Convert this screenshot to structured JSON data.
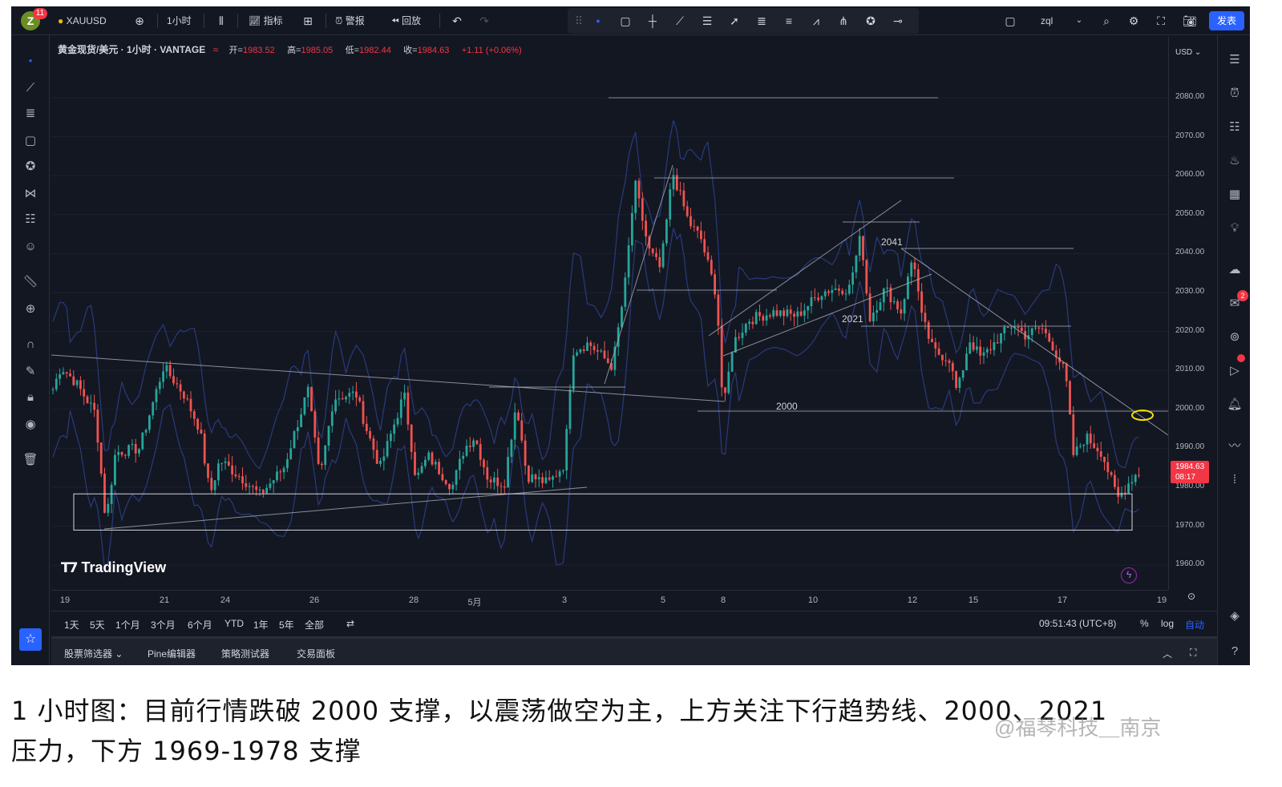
{
  "topbar": {
    "avatar_letter": "Z",
    "notif_count": "11",
    "symbol": "XAUUSD",
    "interval": "1小时",
    "indicators": "指标",
    "alert": "警报",
    "replay": "回放",
    "username": "zql",
    "publish": "发表"
  },
  "legend": {
    "title": "黄金现货/美元 · 1小时 · VANTAGE",
    "open_label": "开=",
    "open": "1983.52",
    "high_label": "高=",
    "high": "1985.05",
    "low_label": "低=",
    "low": "1982.44",
    "close_label": "收=",
    "close": "1984.63",
    "change": "+1.11 (+0.06%)"
  },
  "price_axis": {
    "currency": "USD",
    "current_price": "1984.63",
    "countdown": "08:17",
    "tick_labels": [
      "2080.00",
      "2070.00",
      "2060.00",
      "2050.00",
      "2040.00",
      "2030.00",
      "2020.00",
      "2010.00",
      "2000.00",
      "1990.00",
      "1980.00",
      "1970.00",
      "1960.00"
    ]
  },
  "time_axis": {
    "tick_labels": [
      "19",
      "21",
      "24",
      "26",
      "28",
      "5月",
      "3",
      "5",
      "8",
      "10",
      "12",
      "15",
      "17",
      "19"
    ]
  },
  "chart_annotations": {
    "level_2041": "2041",
    "level_2021": "2021",
    "level_2000": "2000"
  },
  "chart_data": {
    "type": "candlestick",
    "symbol": "XAUUSD",
    "interval": "1小时",
    "ylim": [
      1955,
      2090
    ],
    "x_ticks": [
      "19",
      "21",
      "24",
      "26",
      "28",
      "5月",
      "3",
      "5",
      "8",
      "10",
      "12",
      "15",
      "17",
      "19"
    ],
    "horizontal_levels": [
      2080,
      2060,
      2048,
      2041,
      2031,
      2021,
      2006,
      2000,
      1978,
      1969
    ],
    "support_zone": [
      1969,
      1978
    ],
    "last": {
      "open": 1983.52,
      "high": 1985.05,
      "low": 1982.44,
      "close": 1984.63,
      "change": 1.11,
      "change_pct": 0.06
    }
  },
  "range_bar": {
    "ranges": [
      "1天",
      "5天",
      "1个月",
      "3个月",
      "6个月",
      "YTD",
      "1年",
      "5年",
      "全部"
    ],
    "clock": "09:51:43 (UTC+8)",
    "percent": "%",
    "log": "log",
    "auto": "自动"
  },
  "bottom_tabs": [
    "股票筛选器",
    "Pine编辑器",
    "策略测试器",
    "交易面板"
  ],
  "brand": "TradingView",
  "caption": {
    "line1": "1 小时图：目前行情跌破 2000 支撑，以震荡做空为主，上方关注下行趋势线、2000、2021",
    "line2": "压力，下方 1969-1978 支撑"
  },
  "watermark": "@福琴科技＿南京",
  "colors": {
    "background": "#131722",
    "up": "#26a69a",
    "down": "#ef5350",
    "bands": "#2a3a7a",
    "accent": "#2962ff"
  }
}
